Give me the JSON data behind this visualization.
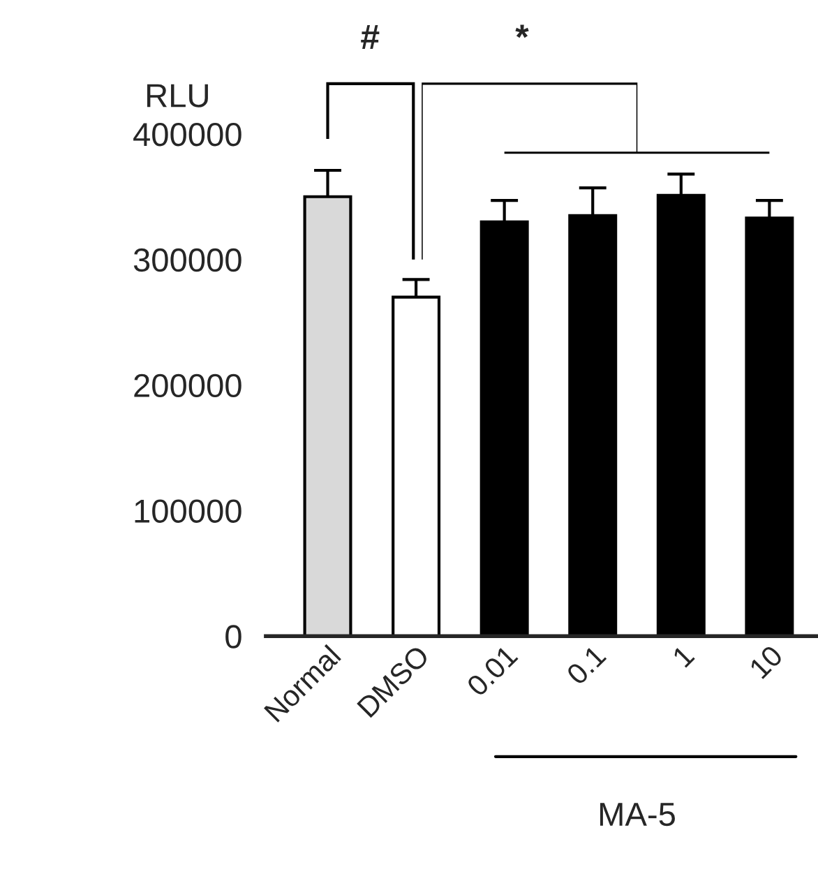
{
  "chart_data": {
    "type": "bar",
    "ylabel": "RLU",
    "categories": [
      "Normal",
      "DMSO",
      "0.01",
      "0.1",
      "1",
      "10"
    ],
    "values": [
      350000,
      270000,
      330000,
      335000,
      351000,
      333000
    ],
    "colors": [
      "#d9d9d9",
      "#ffffff",
      "#000000",
      "#000000",
      "#000000",
      "#000000"
    ],
    "errors": [
      21000,
      14000,
      17000,
      22000,
      17000,
      14000
    ],
    "ylim": [
      0,
      400000
    ],
    "yticks": [
      0,
      100000,
      200000,
      300000,
      400000
    ],
    "annotations": [
      "#",
      "*",
      "MA-5"
    ],
    "grid": false,
    "legend": false
  }
}
